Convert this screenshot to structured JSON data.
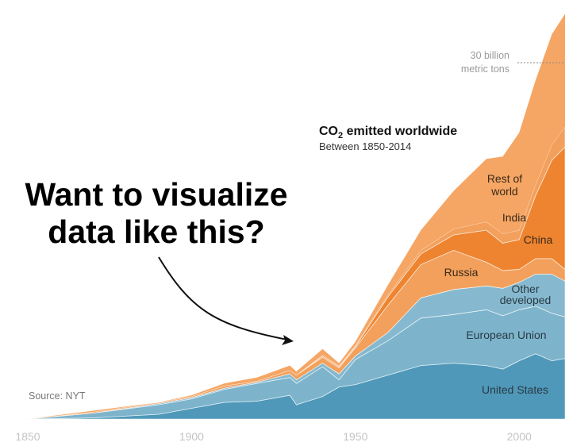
{
  "chart_data": {
    "type": "area",
    "stacked": true,
    "title": "CO2 emitted worldwide",
    "title_main": "CO",
    "title_sub": "2",
    "title_rest": " emitted worldwide",
    "subtitle": "Between 1850-2014",
    "source": "Source: NYT",
    "annotation": {
      "line1": "30 billion",
      "line2": "metric tons",
      "value": 30
    },
    "xlim": [
      1850,
      2014
    ],
    "ylim": [
      0,
      34
    ],
    "x_ticks": [
      "1850",
      "1900",
      "1950",
      "2000"
    ],
    "x": [
      1850,
      1870,
      1890,
      1900,
      1910,
      1920,
      1930,
      1932,
      1940,
      1945,
      1950,
      1960,
      1970,
      1980,
      1990,
      1995,
      2000,
      2005,
      2010,
      2014
    ],
    "series": [
      {
        "name": "United States",
        "color": "#4f98b9",
        "values": [
          0,
          0.1,
          0.4,
          0.9,
          1.4,
          1.5,
          2.0,
          1.2,
          1.9,
          2.7,
          2.9,
          3.7,
          4.5,
          4.7,
          4.5,
          4.2,
          4.9,
          5.5,
          4.9,
          5.1
        ]
      },
      {
        "name": "European Union",
        "color": "#7db4cc",
        "values": [
          0,
          0.4,
          0.8,
          0.8,
          1.1,
          1.5,
          1.5,
          1.8,
          2.5,
          0.6,
          2.1,
          2.9,
          4.0,
          4.1,
          4.7,
          4.5,
          4.3,
          4.0,
          4.0,
          3.5
        ]
      },
      {
        "name": "Other developed",
        "color": "#86b9cf",
        "values": [
          0,
          0,
          0.1,
          0.1,
          0.1,
          0.1,
          0.3,
          0.3,
          0.3,
          0.5,
          0.3,
          0.7,
          1.7,
          2.1,
          2.0,
          2.3,
          2.3,
          2.7,
          3.3,
          3.0
        ]
      },
      {
        "name": "Russia",
        "color": "#f2a05c",
        "values": [
          0,
          0.1,
          0.1,
          0.1,
          0.2,
          0.1,
          0.3,
          0.4,
          0.5,
          0.5,
          0.7,
          2.3,
          2.8,
          3.3,
          2.0,
          1.5,
          1.1,
          1.3,
          1.3,
          1.0
        ]
      },
      {
        "name": "China",
        "color": "#ee8430",
        "values": [
          0,
          0,
          0,
          0,
          0,
          0,
          0,
          0,
          0.1,
          0.1,
          0.1,
          0.7,
          0.9,
          1.3,
          2.7,
          2.3,
          2.5,
          5.3,
          8.3,
          10.3
        ]
      },
      {
        "name": "India",
        "color": "#f2a05c",
        "values": [
          0,
          0,
          0,
          0,
          0,
          0,
          0,
          0,
          0.1,
          0.1,
          0.1,
          0.2,
          0.3,
          0.5,
          0.7,
          0.8,
          0.8,
          0.9,
          1.3,
          1.7
        ]
      },
      {
        "name": "Rest of world",
        "color": "#f5a664",
        "values": [
          0,
          0.1,
          0,
          0.1,
          0.2,
          0.3,
          0.4,
          0.3,
          0.5,
          0.2,
          0.3,
          0.8,
          1.7,
          3.2,
          5.3,
          6.5,
          8.2,
          8.8,
          9.3,
          9.5
        ]
      }
    ],
    "series_labels": {
      "us": "United States",
      "eu": "European Union",
      "od1": "Other",
      "od2": "developed",
      "ru": "Russia",
      "cn": "China",
      "in": "India",
      "row1": "Rest of",
      "row2": "world"
    }
  },
  "overlay": {
    "line1": "Want to visualize",
    "line2": "data like this?"
  }
}
